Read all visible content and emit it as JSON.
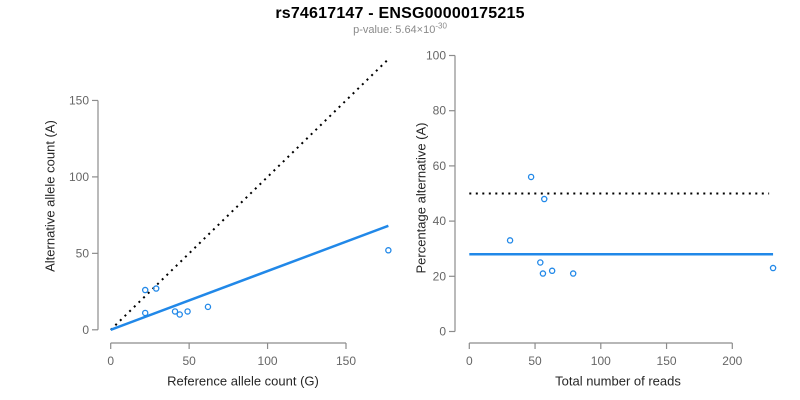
{
  "header": {
    "title": "rs74617147 - ENSG00000175215",
    "subtitle_base": "p-value: 5.64×10",
    "subtitle_exponent": "-30"
  },
  "colors": {
    "accent_blue": "#2188e8",
    "dashed_black": "#000000",
    "axis_gray": "#8c8c8c",
    "tick_text": "#666666",
    "axis_title_text": "#262626",
    "subtitle_gray": "#8a8a8a",
    "title_black": "#000000"
  },
  "chart_data": [
    {
      "id": "ref-vs-alt-count",
      "type": "scatter",
      "xlabel": "Reference allele count (G)",
      "ylabel": "Alternative allele count (A)",
      "xticks": [
        0,
        50,
        100,
        150
      ],
      "yticks": [
        0,
        50,
        100,
        150
      ],
      "xlim": [
        0,
        178
      ],
      "ylim": [
        0,
        178
      ],
      "grid": false,
      "points": [
        [
          22,
          26
        ],
        [
          29,
          27
        ],
        [
          22,
          11
        ],
        [
          41,
          12
        ],
        [
          44,
          10
        ],
        [
          49,
          12
        ],
        [
          62,
          15
        ],
        [
          177,
          52
        ]
      ],
      "lines": [
        {
          "name": "identity-line",
          "style": "dotted",
          "color": "black",
          "from": [
            0,
            0
          ],
          "to": [
            178,
            178
          ]
        },
        {
          "name": "fit-line",
          "style": "solid",
          "color": "blue",
          "from": [
            0,
            0
          ],
          "to": [
            177,
            68
          ]
        }
      ]
    },
    {
      "id": "reads-vs-percentage",
      "type": "scatter",
      "xlabel": "Total number of reads",
      "ylabel": "Percentage alternative (A)",
      "xticks": [
        0,
        50,
        100,
        150,
        200
      ],
      "yticks": [
        0,
        20,
        40,
        60,
        80,
        100
      ],
      "xlim": [
        0,
        236
      ],
      "ylim": [
        0,
        100
      ],
      "grid": false,
      "points": [
        [
          47,
          56
        ],
        [
          57,
          48
        ],
        [
          31,
          33
        ],
        [
          54,
          25
        ],
        [
          56,
          21
        ],
        [
          63,
          22
        ],
        [
          79,
          21
        ],
        [
          231,
          23
        ]
      ],
      "lines": [
        {
          "name": "fifty-percent-line",
          "style": "dotted",
          "color": "black",
          "from": [
            0,
            50
          ],
          "to": [
            228,
            50
          ]
        },
        {
          "name": "mean-percentage-line",
          "style": "solid",
          "color": "blue",
          "from": [
            0,
            28
          ],
          "to": [
            231,
            28
          ]
        }
      ]
    }
  ]
}
